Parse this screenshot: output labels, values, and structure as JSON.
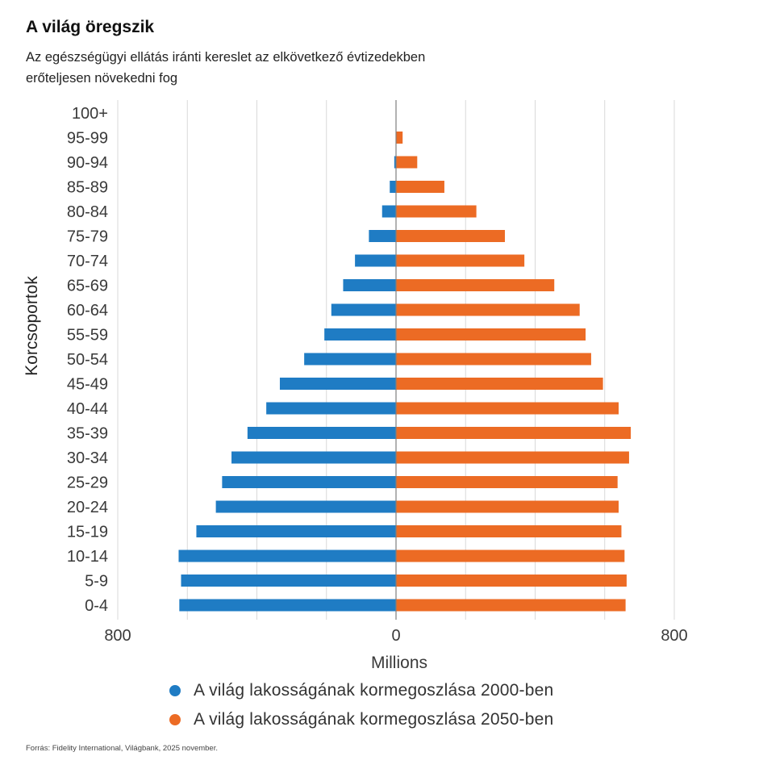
{
  "title": "A világ öregszik",
  "subtitle": "Az egészségügyi ellátás iránti kereslet az elkövetkező évtizedekben erőteljesen növekedni fog",
  "source": "Forrás: Fidelity International, Világbank, 2025 november.",
  "colors": {
    "series2000": "#1f7cc4",
    "series2050": "#ec6b24",
    "grid": "#d9d9d9",
    "axis": "#7f7f7f"
  },
  "chart_data": {
    "type": "bar",
    "orientation": "horizontal-population-pyramid",
    "ylabel": "Korcsoportok",
    "xlabel": "Millions",
    "xlim": [
      -800,
      800
    ],
    "x_tick_labels": [
      "800",
      "0",
      "800"
    ],
    "grid": true,
    "legend_position": "bottom",
    "categories": [
      "100+",
      "95-99",
      "90-94",
      "85-89",
      "80-84",
      "75-79",
      "70-74",
      "65-69",
      "60-64",
      "55-59",
      "50-54",
      "45-49",
      "40-44",
      "35-39",
      "30-34",
      "25-29",
      "20-24",
      "15-19",
      "10-14",
      "5-9",
      "0-4"
    ],
    "series": [
      {
        "name": "A világ lakosságának kormegoszlása 2000-ben",
        "values": [
          0,
          1,
          5,
          18,
          40,
          78,
          118,
          152,
          186,
          206,
          264,
          334,
          373,
          427,
          473,
          500,
          518,
          574,
          625,
          618,
          623
        ]
      },
      {
        "name": "A világ lakosságának kormegoszlása 2050-ben",
        "values": [
          1,
          19,
          61,
          139,
          231,
          313,
          369,
          455,
          528,
          545,
          561,
          595,
          640,
          675,
          670,
          637,
          640,
          648,
          657,
          663,
          660
        ]
      }
    ]
  }
}
